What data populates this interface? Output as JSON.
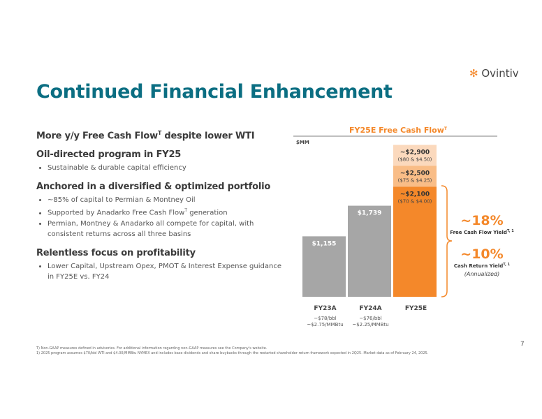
{
  "logo": "Ovintiv",
  "page_title": "Continued Financial Enhancement",
  "sections": [
    {
      "heading": [
        "More y/y Free Cash Flow",
        "T",
        " despite lower WTI"
      ],
      "bullets": []
    },
    {
      "heading": [
        "Oil-directed program in FY25"
      ],
      "bullets": [
        [
          "Sustainable & durable capital efficiency"
        ]
      ]
    },
    {
      "heading": [
        "Anchored in a diversified & optimized portfolio"
      ],
      "bullets": [
        [
          "~85% of capital to Permian & Montney Oil"
        ],
        [
          "Supported by Anadarko Free Cash Flow",
          "T",
          " generation"
        ],
        [
          "Permian, Montney & Anadarko all compete for capital, with consistent returns across all three basins"
        ]
      ]
    },
    {
      "heading": [
        "Relentless focus on profitability"
      ],
      "bullets": [
        [
          "Lower Capital, Upstream Opex, PMOT & Interest Expense guidance in FY25E vs. FY24"
        ]
      ]
    }
  ],
  "chart_data": {
    "type": "bar",
    "title": "FY25E Free Cash Flow",
    "title_sup": "T",
    "unit_label": "$MM",
    "categories": [
      "FY23A",
      "FY24A",
      "FY25E"
    ],
    "category_notes": [
      [
        "~$78/bbl",
        "~$2.75/MMBtu"
      ],
      [
        "~$76/bbl",
        "~$2.25/MMBtu"
      ],
      []
    ],
    "ylim": [
      0,
      3000
    ],
    "series": [
      {
        "color": "#a6a6a6",
        "values": [
          1155,
          1739,
          null
        ],
        "value_labels": [
          "$1,155",
          "$1,739",
          null
        ],
        "notes": [
          null,
          null,
          null
        ]
      },
      {
        "color": "#fbd9bd",
        "values": [
          null,
          null,
          2900
        ],
        "value_labels": [
          null,
          null,
          "~$2,900"
        ],
        "notes": [
          null,
          null,
          "($80 & $4.50)"
        ]
      },
      {
        "color": "#f9bd87",
        "values": [
          null,
          null,
          2500
        ],
        "value_labels": [
          null,
          null,
          "~$2,500"
        ],
        "notes": [
          null,
          null,
          "($75 & $4.25)"
        ]
      },
      {
        "color": "#f4882a",
        "values": [
          null,
          null,
          2100
        ],
        "value_labels": [
          null,
          null,
          "~$2,100"
        ],
        "notes": [
          null,
          null,
          "($70 & $4.00)"
        ]
      }
    ]
  },
  "yields": [
    {
      "value": "~18%",
      "label": "Free Cash Flow Yield",
      "sup": "T, 1"
    },
    {
      "value": "~10%",
      "label": "Cash Return Yield",
      "sup": "T, 1",
      "note": "(Annualized)"
    }
  ],
  "footnotes": [
    "T) Non-GAAP measures defined in advisories. For additional information regarding non-GAAP measures see the Company's website.",
    "1) 2025 program assumes $70/bbl WTI and $4.00/MMBtu NYMEX and includes base dividends and share buybacks through the restarted shareholder return framework expected in 2Q25. Market data as of February 24, 2025."
  ],
  "page_number": "7"
}
